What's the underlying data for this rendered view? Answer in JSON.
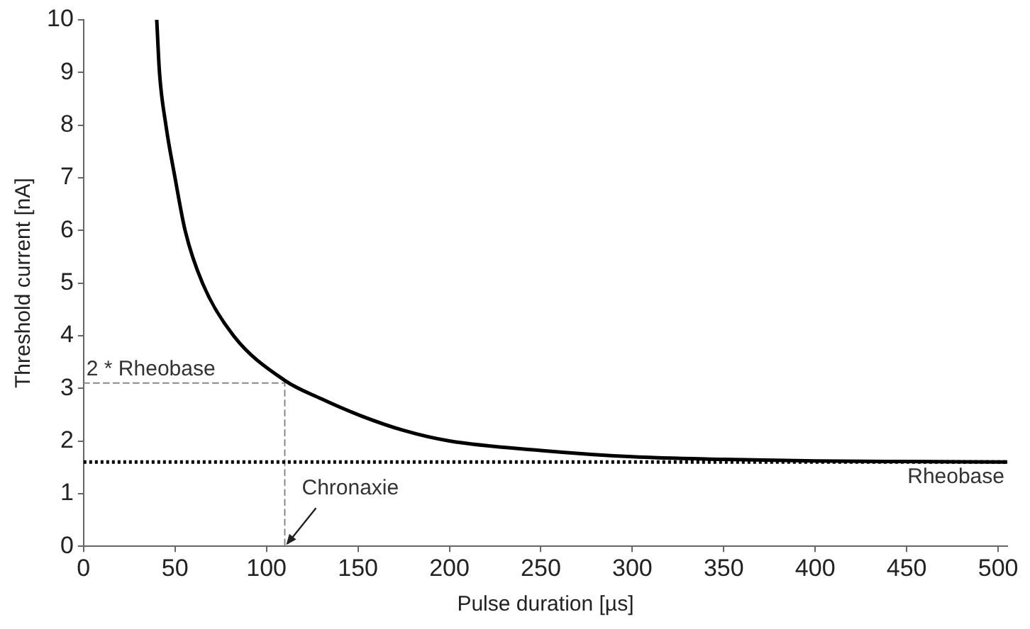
{
  "chart_data": {
    "type": "line",
    "xlabel": "Pulse duration [µs]",
    "ylabel": "Threshold current [nA]",
    "xlim": [
      0,
      505
    ],
    "xticks": [
      0,
      50,
      100,
      150,
      200,
      250,
      300,
      350,
      400,
      450,
      500
    ],
    "ylim": [
      0,
      10
    ],
    "yticks": [
      0,
      1,
      2,
      3,
      4,
      5,
      6,
      7,
      8,
      9,
      10
    ],
    "grid": false,
    "legend": false,
    "marker": "none",
    "series": [
      {
        "color": "#000000",
        "line_style": "solid",
        "x": [
          40,
          41.5,
          45,
          50,
          55.5,
          65,
          82,
          110,
          130,
          150,
          175,
          200,
          250,
          300,
          350,
          400,
          450,
          505
        ],
        "values": [
          10,
          9,
          8,
          7,
          6,
          5,
          4,
          3.15,
          2.8,
          2.5,
          2.2,
          2.0,
          1.82,
          1.7,
          1.65,
          1.62,
          1.61,
          1.6
        ]
      },
      {
        "color": "#888888",
        "line_style": "dashed",
        "x": [
          0,
          110,
          110
        ],
        "values": [
          3.1,
          3.1,
          0
        ]
      }
    ],
    "ref_lines": [
      {
        "axis": "y",
        "value": 1.6,
        "label": "Rheobase",
        "color": "#000000",
        "line_style": "dotted"
      }
    ],
    "annotations": [
      {
        "text": "2 * Rheobase",
        "x": 0,
        "y": 3.1
      },
      {
        "text": "Chronaxie",
        "x": 110,
        "y": 0
      }
    ]
  }
}
